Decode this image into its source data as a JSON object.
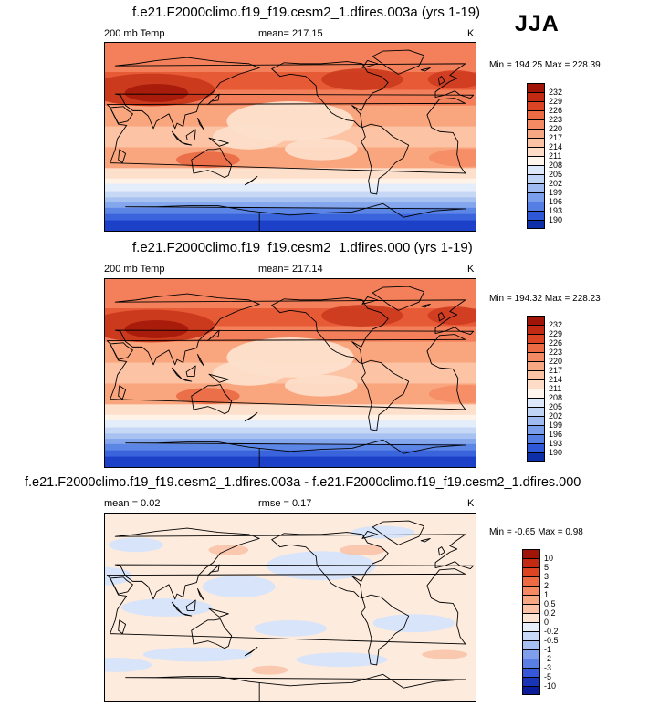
{
  "season": "JJA",
  "colors": {
    "warm": [
      "#fff2e6",
      "#fde0cc",
      "#fcc4a5",
      "#f9a57e",
      "#f3805a",
      "#e65a35",
      "#cc3a1e",
      "#a01508"
    ],
    "cool": [
      "#e4eefa",
      "#c6d8f5",
      "#a7c1f1",
      "#83a6ed",
      "#5c86e6",
      "#3a64dc",
      "#1d40c9",
      "#0a1c9a"
    ],
    "diff_neutral": "#fdebdd",
    "diff_cool": "#d6e4fa",
    "diff_warm": "#f9c3aa"
  },
  "panels": [
    {
      "id": "top",
      "title": "f.e21.F2000climo.f19_f19.cesm2_1.dfires.003a (yrs 1-19)",
      "left_label": "200 mb Temp",
      "center_label": "mean= 217.15",
      "right_label": "K",
      "minmax": "Min = 194.25 Max = 228.39",
      "kind": "abs"
    },
    {
      "id": "middle",
      "title": "f.e21.F2000climo.f19_f19.cesm2_1.dfires.000 (yrs 1-19)",
      "left_label": "200 mb Temp",
      "center_label": "mean= 217.14",
      "right_label": "K",
      "minmax": "Min = 194.32 Max = 228.23",
      "kind": "abs"
    },
    {
      "id": "bottom",
      "title": "f.e21.F2000climo.f19_f19.cesm2_1.dfires.003a - f.e21.F2000climo.f19_f19.cesm2_1.dfires.000",
      "left_label": "mean =   0.02",
      "center_label": "rmse =   0.17",
      "right_label": "K",
      "minmax": "Min =  -0.65 Max =   0.98",
      "kind": "diff"
    }
  ],
  "colorbars": {
    "abs": {
      "labels": [
        "232",
        "229",
        "226",
        "223",
        "220",
        "217",
        "214",
        "211",
        "208",
        "205",
        "202",
        "199",
        "196",
        "193",
        "190"
      ],
      "colors": [
        "#a01508",
        "#c32a14",
        "#dc4424",
        "#ec6a44",
        "#f48a64",
        "#f8a783",
        "#fbc2a6",
        "#fddcc8",
        "#fff5ec",
        "#dde8fa",
        "#c0d4f6",
        "#9fbaf1",
        "#7b9eec",
        "#547ee4",
        "#2f58d9",
        "#0f2fa8"
      ]
    },
    "diff": {
      "labels": [
        "10",
        "5",
        "3",
        "2",
        "1",
        "0.5",
        "0.2",
        "0",
        "-0.2",
        "-0.5",
        "-1",
        "-2",
        "-3",
        "-5",
        "-10"
      ],
      "colors": [
        "#a01508",
        "#c32a14",
        "#dc4424",
        "#ec6a44",
        "#f48a64",
        "#f8a783",
        "#fbc2a6",
        "#fde3d2",
        "#e6eefb",
        "#c8daf7",
        "#a6c0f2",
        "#7f9fec",
        "#5a7fe4",
        "#3657d8",
        "#1a34b6",
        "#0a1c9a"
      ]
    }
  }
}
